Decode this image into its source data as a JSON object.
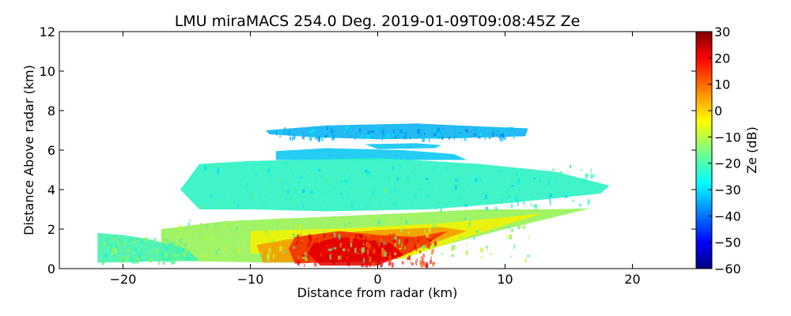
{
  "chart_data": {
    "type": "heatmap",
    "title": "LMU miraMACS 254.0 Deg. 2019-01-09T09:08:45Z  Ze",
    "xlabel": "Distance from radar (km)",
    "ylabel": "Distance Above radar  (km)",
    "xlim": [
      -25,
      25
    ],
    "ylim": [
      0,
      12
    ],
    "xticks": [
      -20,
      -10,
      0,
      10,
      20
    ],
    "xtick_labels": [
      "−20",
      "−10",
      "0",
      "10",
      "20"
    ],
    "yticks": [
      0,
      2,
      4,
      6,
      8,
      10,
      12
    ],
    "ytick_labels": [
      "0",
      "2",
      "4",
      "6",
      "8",
      "10",
      "12"
    ],
    "colorbar": {
      "label": "Ze (dB)",
      "range": [
        -60,
        30
      ],
      "ticks": [
        30,
        20,
        10,
        0,
        -10,
        -20,
        -30,
        -40,
        -50,
        -60
      ],
      "tick_labels": [
        "30",
        "20",
        "10",
        "0",
        "−10",
        "−20",
        "−30",
        "−40",
        "−50",
        "−60"
      ],
      "colormap": "jet"
    },
    "echo_regions": [
      {
        "name": "upper-cloud-layer",
        "x": [
          -9,
          12
        ],
        "y": [
          6.8,
          7.4
        ],
        "ze_db": -32
      },
      {
        "name": "upper-cloud-fragment",
        "x": [
          -1,
          5
        ],
        "y": [
          6.1,
          6.35
        ],
        "ze_db": -30
      },
      {
        "name": "mid-cloud-top",
        "x": [
          -8,
          7
        ],
        "y": [
          5.5,
          6.1
        ],
        "ze_db": -30
      },
      {
        "name": "mid-cloud-layer",
        "x": [
          -14,
          18
        ],
        "y": [
          2.8,
          5.5
        ],
        "ze_db": -22
      },
      {
        "name": "lower-stratiform",
        "x": [
          -17,
          17
        ],
        "y": [
          0.3,
          2.8
        ],
        "ze_db": -12
      },
      {
        "name": "near-surface-west",
        "x": [
          -22,
          -14
        ],
        "y": [
          0.3,
          1.8
        ],
        "ze_db": -20
      },
      {
        "name": "precip-core",
        "x": [
          -7,
          6
        ],
        "y": [
          0.1,
          2.0
        ],
        "ze_db": 12
      }
    ]
  }
}
